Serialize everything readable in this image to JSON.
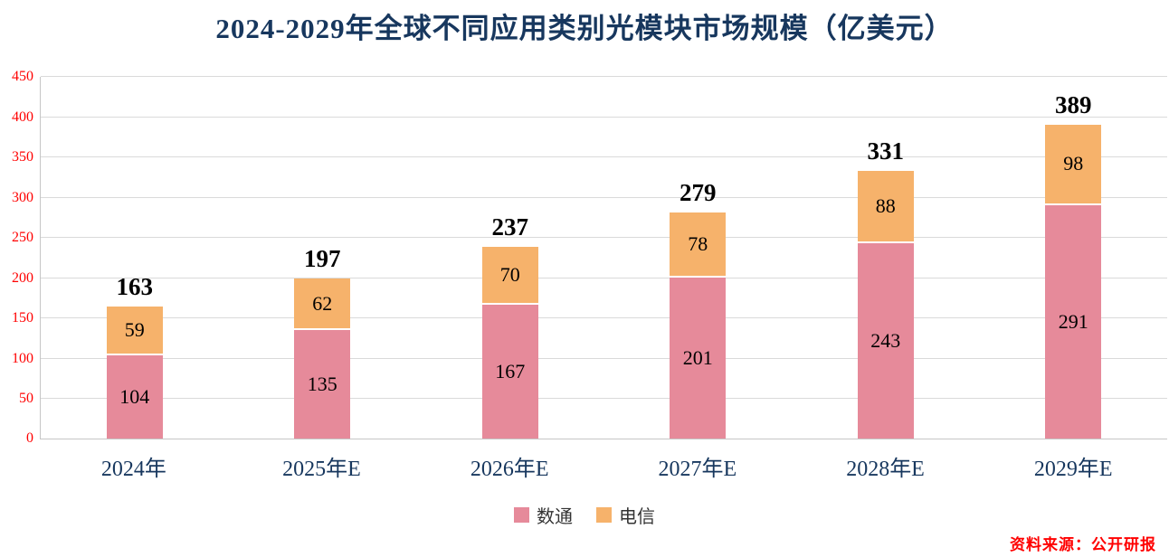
{
  "title": "2024-2029年全球不同应用类别光模块市场规模（亿美元）",
  "source_label": "资料来源：公开研报",
  "chart_data": {
    "type": "bar",
    "stacked": true,
    "title": "2024-2029年全球不同应用类别光模块市场规模（亿美元）",
    "categories": [
      "2024年",
      "2025年E",
      "2026年E",
      "2027年E",
      "2028年E",
      "2029年E"
    ],
    "series": [
      {
        "name": "数通",
        "color": "#E68A9A",
        "values": [
          104,
          135,
          167,
          201,
          243,
          291
        ]
      },
      {
        "name": "电信",
        "color": "#F6B26B",
        "values": [
          59,
          62,
          70,
          78,
          88,
          98
        ]
      }
    ],
    "totals": [
      163,
      197,
      237,
      279,
      331,
      389
    ],
    "xlabel": "",
    "ylabel": "",
    "ylim": [
      0,
      450
    ],
    "ytick_interval": 50,
    "ytick_color": "#FF0000",
    "grid": true,
    "legend_position": "bottom"
  }
}
